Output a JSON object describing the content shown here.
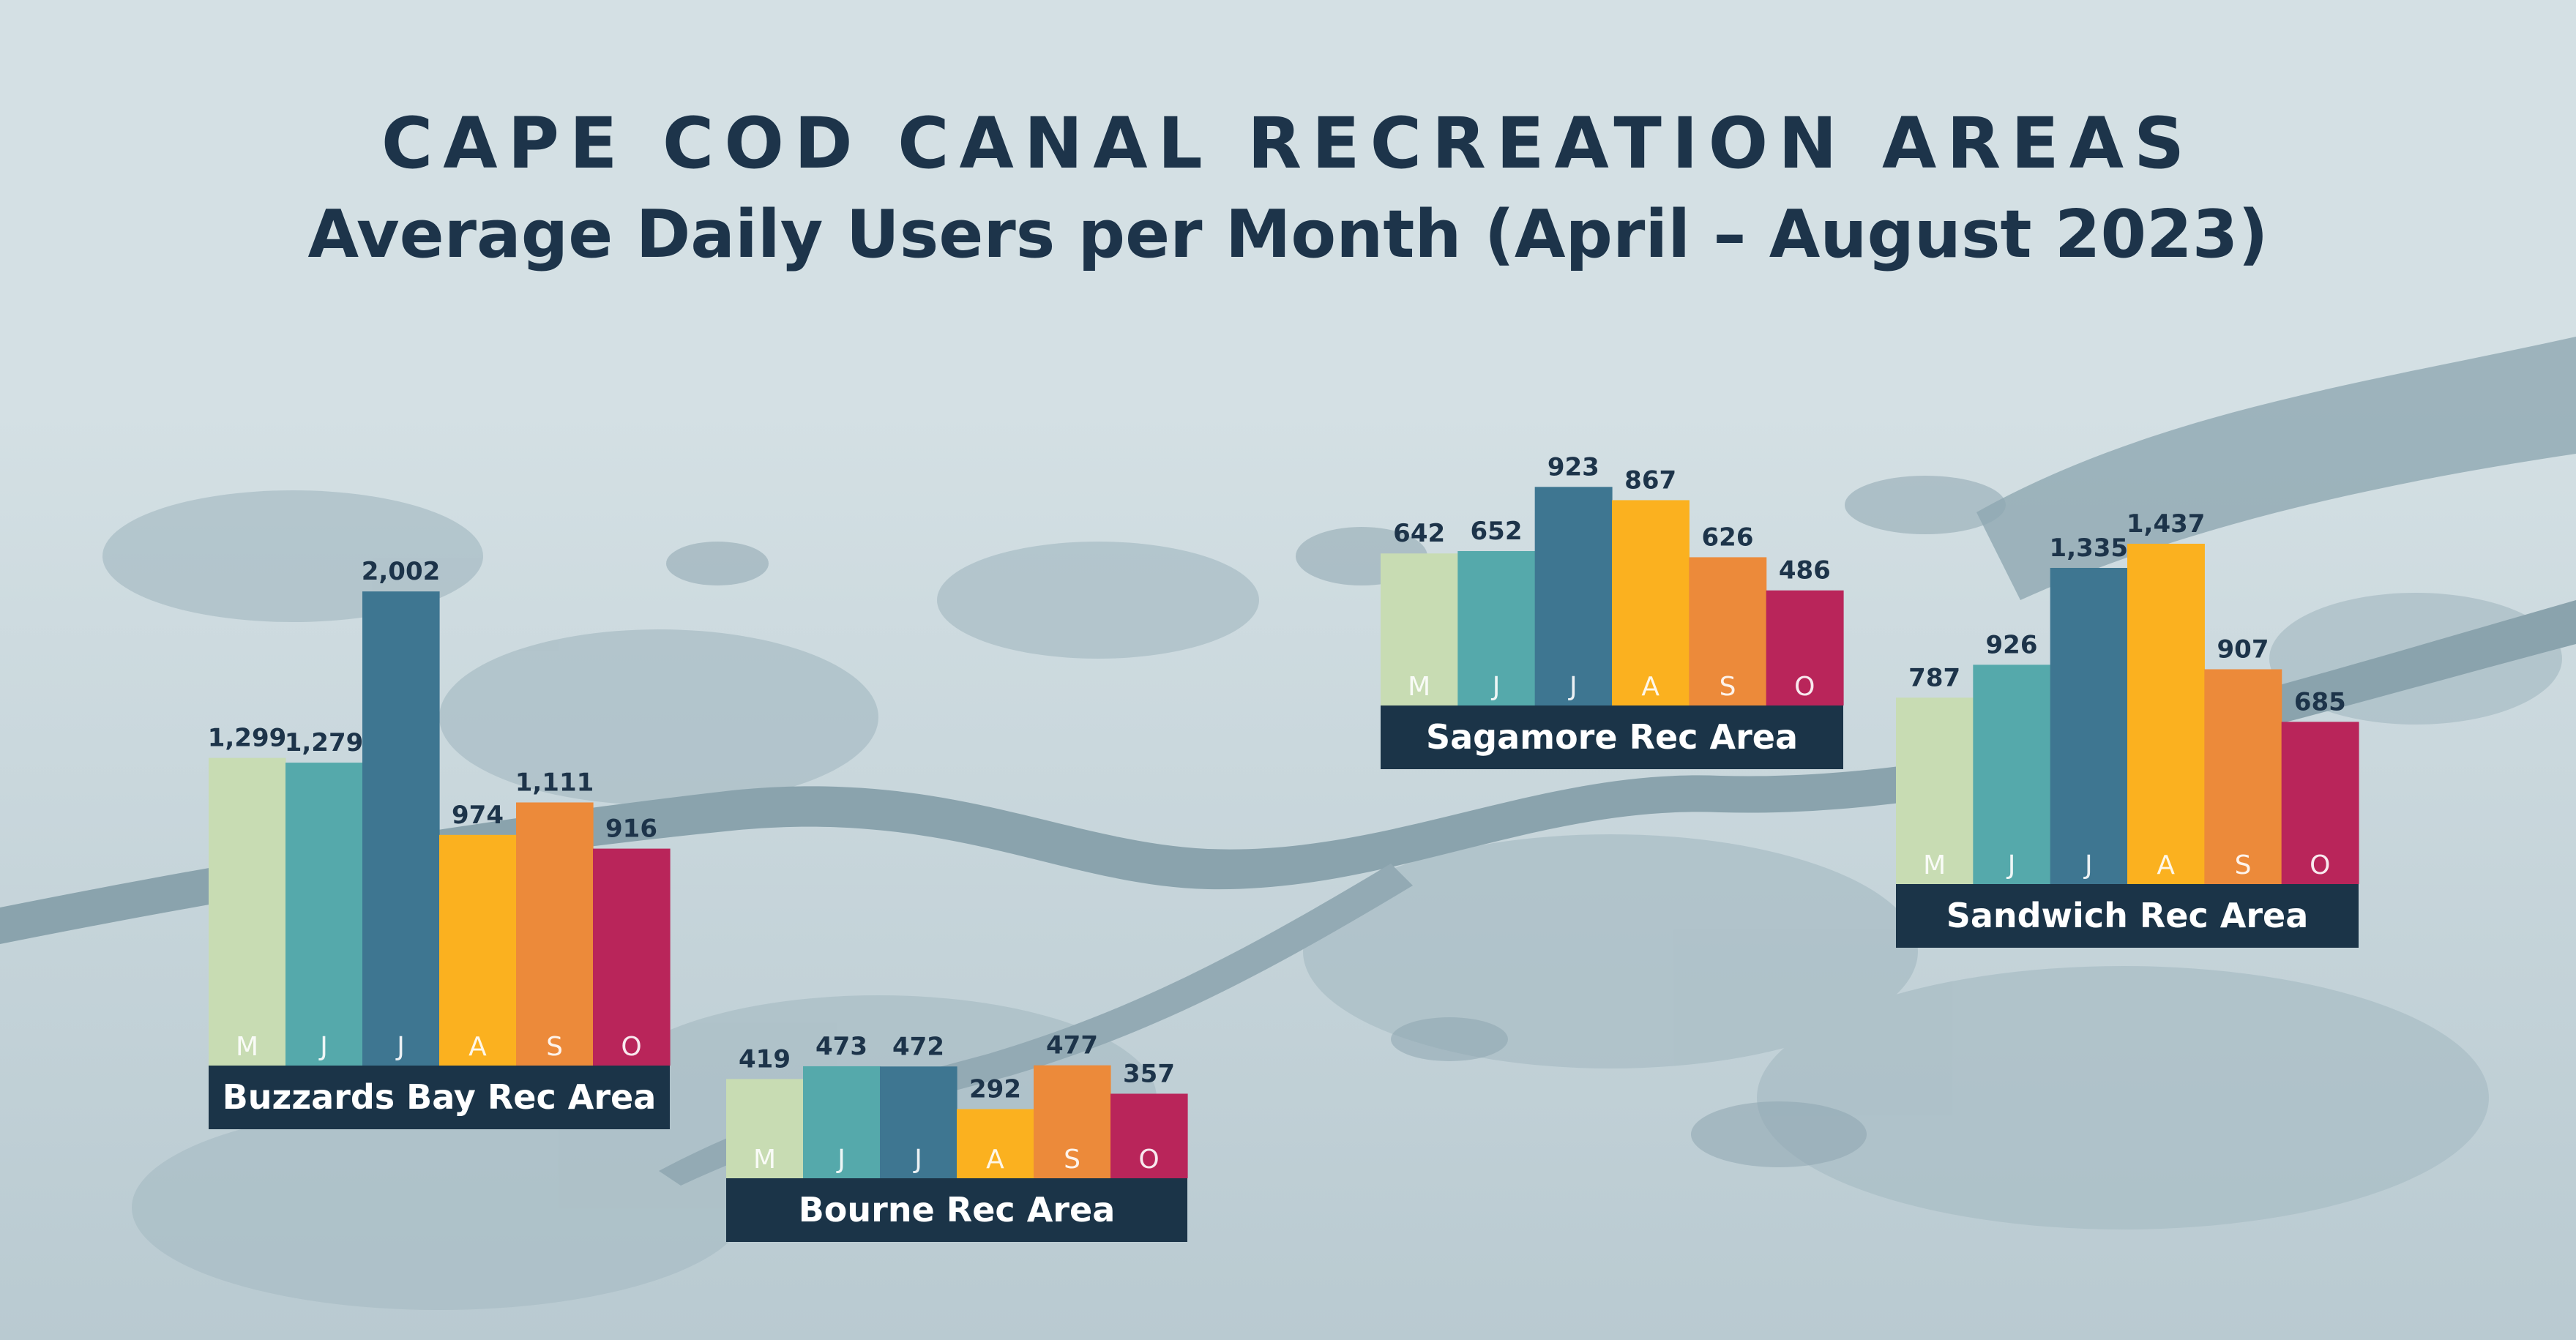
{
  "title": "CAPE COD CANAL RECREATION AREAS",
  "subtitle": "Average Daily Users per Month (April – August 2023)",
  "colors": {
    "background": "#d3dfe3",
    "label_box": "#1b3448",
    "title": "#1d344a",
    "months": [
      "#c8dcb3",
      "#55a9ab",
      "#3e7691",
      "#fbb11f",
      "#ec8a3a",
      "#b9255a"
    ]
  },
  "chart_data": [
    {
      "type": "bar",
      "title": "Buzzards Bay Rec Area",
      "categories": [
        "M",
        "J",
        "J",
        "A",
        "S",
        "O"
      ],
      "values": [
        1299,
        1279,
        2002,
        974,
        1111,
        916
      ],
      "value_labels": [
        "1,299",
        "1,279",
        "2,002",
        "974",
        "1,111",
        "916"
      ],
      "ylim": [
        0,
        2002
      ]
    },
    {
      "type": "bar",
      "title": "Bourne Rec Area",
      "categories": [
        "M",
        "J",
        "J",
        "A",
        "S",
        "O"
      ],
      "values": [
        419,
        473,
        472,
        292,
        477,
        357
      ],
      "value_labels": [
        "419",
        "473",
        "472",
        "292",
        "477",
        "357"
      ],
      "ylim": [
        0,
        2002
      ]
    },
    {
      "type": "bar",
      "title": "Sagamore Rec Area",
      "categories": [
        "M",
        "J",
        "J",
        "A",
        "S",
        "O"
      ],
      "values": [
        642,
        652,
        923,
        867,
        626,
        486
      ],
      "value_labels": [
        "642",
        "652",
        "923",
        "867",
        "626",
        "486"
      ],
      "ylim": [
        0,
        2002
      ]
    },
    {
      "type": "bar",
      "title": "Sandwich Rec Area",
      "categories": [
        "M",
        "J",
        "J",
        "A",
        "S",
        "O"
      ],
      "values": [
        787,
        926,
        1335,
        1437,
        907,
        685
      ],
      "value_labels": [
        "787",
        "926",
        "1,335",
        "1,437",
        "907",
        "685"
      ],
      "ylim": [
        0,
        2002
      ]
    }
  ]
}
